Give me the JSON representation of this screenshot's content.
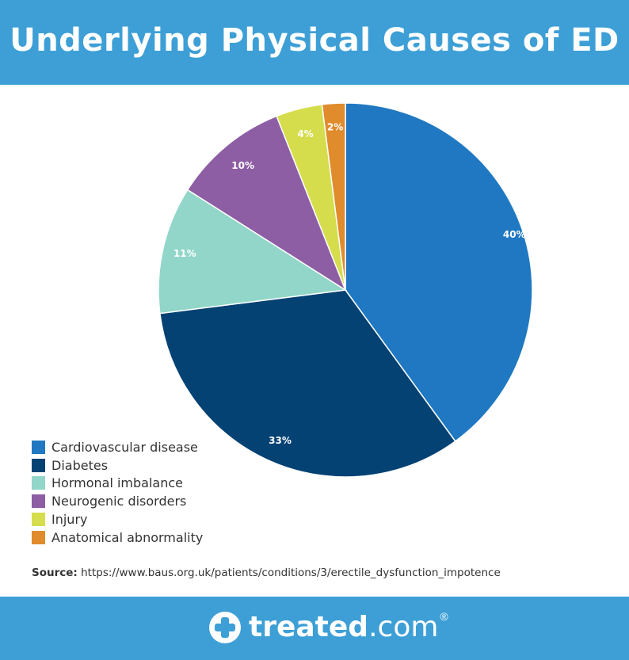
{
  "header": {
    "title": "Underlying Physical Causes of ED"
  },
  "chart_data": {
    "type": "pie",
    "title": "Underlying Physical Causes of ED",
    "categories": [
      "Cardiovascular disease",
      "Diabetes",
      "Hormonal imbalance",
      "Neurogenic disorders",
      "Injury",
      "Anatomical abnormality"
    ],
    "values": [
      40,
      33,
      11,
      10,
      4,
      2
    ],
    "labels": [
      "40%",
      "33%",
      "11%",
      "10%",
      "4%",
      "2%"
    ],
    "colors": [
      "#1f78c1",
      "#044274",
      "#91d6c9",
      "#8d5ea3",
      "#d5dd4c",
      "#e08b2c"
    ],
    "legend_position": "bottom-left"
  },
  "source": {
    "label": "Source:",
    "text": "https://www.baus.org.uk/patients/conditions/3/erectile_dysfunction_impotence"
  },
  "footer": {
    "brand_name": "treated",
    "brand_tld": ".com",
    "brand_reg": "®",
    "icon": "plus-icon"
  }
}
